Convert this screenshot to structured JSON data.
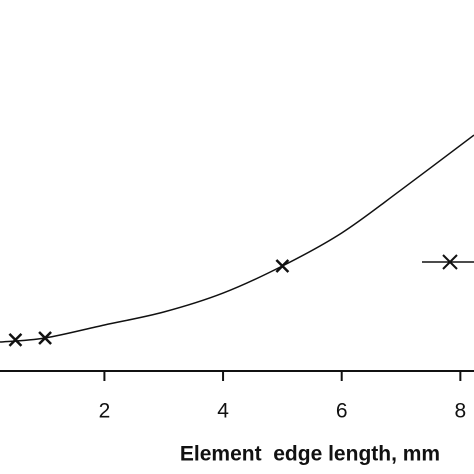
{
  "chart_data": {
    "type": "line",
    "x_label": "Element  edge length, mm",
    "xlim": [
      0.24,
      8.23
    ],
    "xticks": [
      2,
      4,
      6,
      8
    ],
    "ylim": [
      0,
      100
    ],
    "series": [
      {
        "color": "#111111",
        "x": [
          0.24,
          1,
          2,
          3,
          4,
          5,
          6,
          7,
          8.23
        ],
        "values": [
          7.8,
          8.9,
          12.4,
          15.9,
          21.0,
          28.3,
          37.2,
          48.8,
          63.6
        ]
      },
      {
        "color": "#111111",
        "x": [
          0.5,
          1,
          5
        ],
        "values": [
          8.4,
          8.9,
          28.3
        ],
        "marker": "x"
      }
    ]
  }
}
